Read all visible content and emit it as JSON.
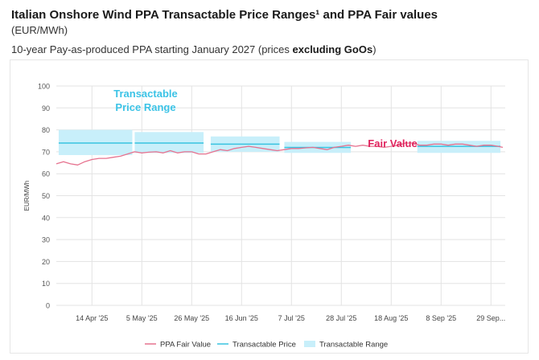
{
  "header": {
    "title": "Italian Onshore Wind PPA Transactable Price Ranges¹ and PPA Fair values",
    "unit": "(EUR/MWh)",
    "subtitle_prefix": "10-year Pay-as-produced PPA starting January 2027 (prices ",
    "subtitle_bold": "excluding GoOs",
    "subtitle_suffix": ")"
  },
  "colors": {
    "fair_value": "#e6728f",
    "transactable_price": "#38c3e0",
    "transactable_range": "#c8effa",
    "annotation_range": "#3cc3e6",
    "annotation_fair": "#e0255f",
    "grid": "#e3e3e3"
  },
  "chart_data": {
    "type": "line",
    "ylabel": "EUR/MWh",
    "ylim": [
      0,
      100
    ],
    "yticks": [
      0,
      10,
      20,
      30,
      40,
      50,
      60,
      70,
      80,
      90,
      100
    ],
    "xlim": [
      "2025-03-30",
      "2025-10-05"
    ],
    "xticks": [
      {
        "date": "2025-04-14",
        "label": "14 Apr '25"
      },
      {
        "date": "2025-05-05",
        "label": "5 May '25"
      },
      {
        "date": "2025-05-26",
        "label": "26 May '25"
      },
      {
        "date": "2025-06-16",
        "label": "16 Jun '25"
      },
      {
        "date": "2025-07-07",
        "label": "7 Jul '25"
      },
      {
        "date": "2025-07-28",
        "label": "28 Jul '25"
      },
      {
        "date": "2025-08-18",
        "label": "18 Aug '25"
      },
      {
        "date": "2025-09-08",
        "label": "8 Sep '25"
      },
      {
        "date": "2025-09-29",
        "label": "29 Sep..."
      }
    ],
    "grid": true,
    "legend_position": "bottom",
    "legend": [
      "PPA Fair Value",
      "Transactable Price",
      "Transactable Range"
    ],
    "transactable": [
      {
        "start": "2025-03-31",
        "end": "2025-05-01",
        "low": 68.5,
        "high": 80.0,
        "price": 74.0
      },
      {
        "start": "2025-05-02",
        "end": "2025-05-31",
        "low": 69.5,
        "high": 79.0,
        "price": 74.0
      },
      {
        "start": "2025-06-03",
        "end": "2025-07-02",
        "low": 70.0,
        "high": 77.0,
        "price": 73.5
      },
      {
        "start": "2025-07-04",
        "end": "2025-08-01",
        "low": 69.5,
        "high": 74.5,
        "price": 72.0
      },
      {
        "start": "2025-08-29",
        "end": "2025-10-03",
        "low": 69.5,
        "high": 75.0,
        "price": 72.5
      }
    ],
    "fair_value": {
      "x": [
        "2025-03-30",
        "2025-04-02",
        "2025-04-05",
        "2025-04-08",
        "2025-04-11",
        "2025-04-14",
        "2025-04-17",
        "2025-04-20",
        "2025-04-23",
        "2025-04-26",
        "2025-04-29",
        "2025-05-02",
        "2025-05-05",
        "2025-05-08",
        "2025-05-11",
        "2025-05-14",
        "2025-05-17",
        "2025-05-20",
        "2025-05-23",
        "2025-05-26",
        "2025-05-29",
        "2025-06-01",
        "2025-06-04",
        "2025-06-07",
        "2025-06-10",
        "2025-06-13",
        "2025-06-16",
        "2025-06-19",
        "2025-06-22",
        "2025-06-25",
        "2025-06-28",
        "2025-07-01",
        "2025-07-04",
        "2025-07-07",
        "2025-07-10",
        "2025-07-13",
        "2025-07-16",
        "2025-07-19",
        "2025-07-22",
        "2025-07-25",
        "2025-07-28",
        "2025-07-31",
        "2025-08-03",
        "2025-08-06",
        "2025-08-09",
        "2025-08-12",
        "2025-08-15",
        "2025-08-18",
        "2025-08-21",
        "2025-08-24",
        "2025-08-27",
        "2025-08-30",
        "2025-09-02",
        "2025-09-05",
        "2025-09-08",
        "2025-09-11",
        "2025-09-14",
        "2025-09-17",
        "2025-09-20",
        "2025-09-23",
        "2025-09-26",
        "2025-09-29",
        "2025-10-02",
        "2025-10-04"
      ],
      "y": [
        64.5,
        65.5,
        64.5,
        64.0,
        65.5,
        66.5,
        67.0,
        67.0,
        67.5,
        68.0,
        69.0,
        70.0,
        69.5,
        69.8,
        70.0,
        69.5,
        70.5,
        69.5,
        70.0,
        70.0,
        69.0,
        69.0,
        70.0,
        71.0,
        70.5,
        71.5,
        72.0,
        72.5,
        72.0,
        71.5,
        71.0,
        70.5,
        71.0,
        71.5,
        71.5,
        71.8,
        72.0,
        71.5,
        71.0,
        72.0,
        72.5,
        73.0,
        72.5,
        73.0,
        72.5,
        72.5,
        72.0,
        72.5,
        73.0,
        74.0,
        74.0,
        73.0,
        73.0,
        73.5,
        73.5,
        73.0,
        73.5,
        73.5,
        73.0,
        72.5,
        73.0,
        73.0,
        72.5,
        72.0
      ]
    },
    "annotations": [
      {
        "text": "Transactable",
        "color_key": "annotation_range"
      },
      {
        "text": "Price Range",
        "color_key": "annotation_range"
      },
      {
        "text": "Fair Value",
        "color_key": "annotation_fair"
      }
    ]
  }
}
